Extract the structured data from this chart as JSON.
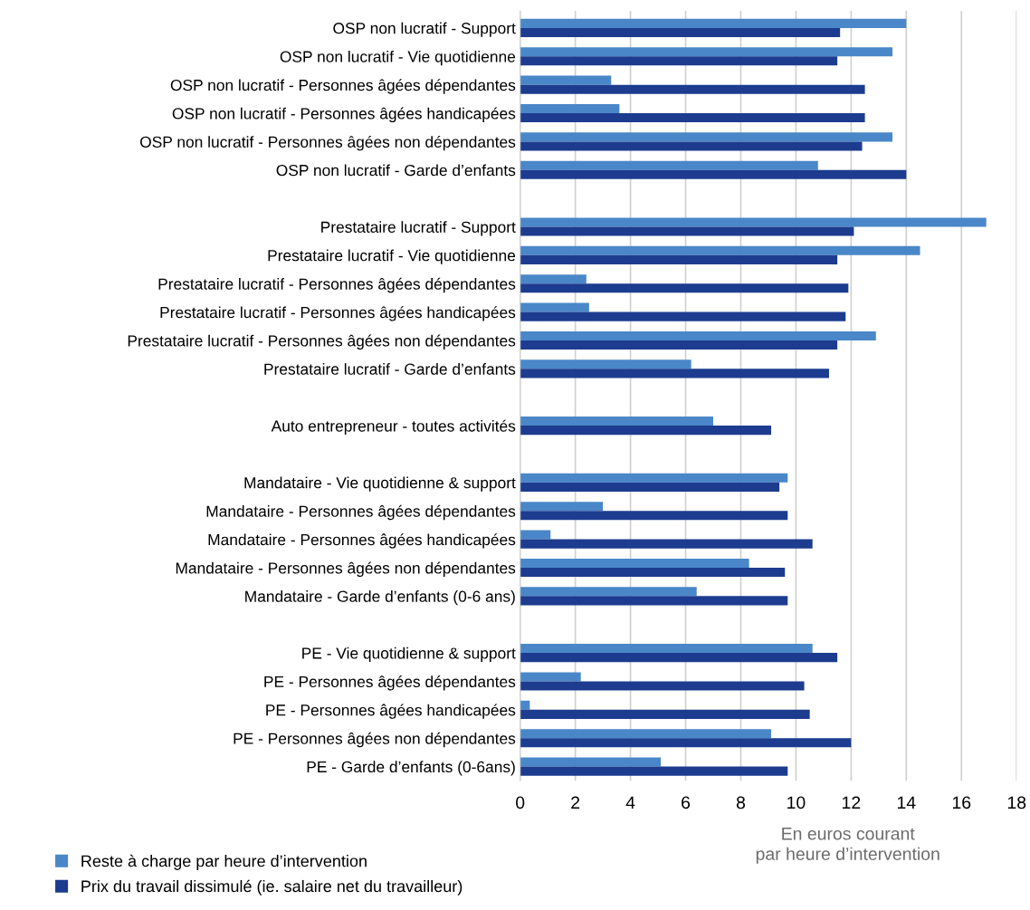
{
  "chart_data": {
    "type": "bar",
    "orientation": "horizontal",
    "categories": [
      "OSP non lucratif - Support",
      "OSP non lucratif - Vie quotidienne",
      "OSP non lucratif - Personnes âgées dépendantes",
      "OSP non lucratif - Personnes âgées handicapées",
      "OSP non lucratif - Personnes âgées non dépendantes",
      "OSP non lucratif - Garde d’enfants",
      null,
      "Prestataire lucratif - Support",
      "Prestataire lucratif - Vie quotidienne",
      "Prestataire lucratif - Personnes âgées dépendantes",
      "Prestataire lucratif - Personnes âgées handicapées",
      "Prestataire lucratif - Personnes âgées non dépendantes",
      "Prestataire lucratif - Garde d’enfants",
      null,
      "Auto entrepreneur - toutes activités",
      null,
      "Mandataire - Vie quotidienne & support",
      "Mandataire - Personnes âgées dépendantes",
      "Mandataire - Personnes âgées handicapées",
      "Mandataire - Personnes âgées non dépendantes",
      "Mandataire - Garde d’enfants (0-6 ans)",
      null,
      "PE - Vie quotidienne & support",
      "PE - Personnes âgées dépendantes",
      "PE - Personnes âgées handicapées",
      "PE - Personnes âgées non dépendantes",
      "PE - Garde d’enfants (0-6ans)"
    ],
    "series": [
      {
        "name": "Reste à charge par heure d’intervention",
        "color": "#4a87c8",
        "values": [
          14.0,
          13.5,
          3.3,
          3.6,
          13.5,
          10.8,
          null,
          16.9,
          14.5,
          2.4,
          2.5,
          12.9,
          6.2,
          null,
          7.0,
          null,
          9.7,
          3.0,
          1.1,
          8.3,
          6.4,
          null,
          10.6,
          2.2,
          0.35,
          9.1,
          5.1
        ]
      },
      {
        "name": "Prix du travail dissimulé (ie. salaire net du travailleur)",
        "color": "#1d3c8f",
        "values": [
          11.6,
          11.5,
          12.5,
          12.5,
          12.4,
          14.0,
          null,
          12.1,
          11.5,
          11.9,
          11.8,
          11.5,
          11.2,
          null,
          9.1,
          null,
          9.4,
          9.7,
          10.6,
          9.6,
          9.7,
          null,
          11.5,
          10.3,
          10.5,
          12.0,
          9.7
        ]
      }
    ],
    "xlabel": "En euros courant\npar heure d’intervention",
    "xlim": [
      0,
      18
    ],
    "xticks": [
      0,
      2,
      4,
      6,
      8,
      10,
      12,
      14,
      16,
      18
    ],
    "grid": "x",
    "legend": "bottom left"
  }
}
